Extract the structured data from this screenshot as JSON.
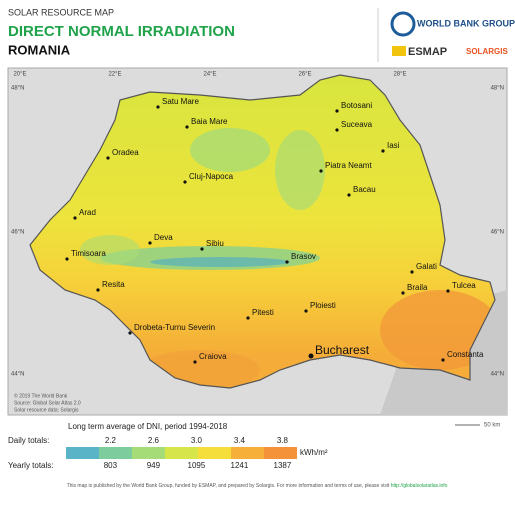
{
  "header": {
    "kicker": "SOLAR RESOURCE MAP",
    "title": "DIRECT NORMAL IRRADIATION",
    "country": "ROMANIA"
  },
  "logos": {
    "world_bank": "WORLD BANK GROUP",
    "esmap": "ESMAP",
    "solargis": "SOLARGIS"
  },
  "graticule": {
    "top": [
      "20°E",
      "22°E",
      "24°E",
      "26°E",
      "28°E"
    ],
    "left": [
      "48°N",
      "46°N",
      "44°N"
    ],
    "right": [
      "48°N",
      "46°N",
      "44°N"
    ]
  },
  "cities": [
    "Satu Mare",
    "Botosani",
    "Baia Mare",
    "Suceava",
    "Oradea",
    "Iasi",
    "Piatra Neamt",
    "Cluj-Napoca",
    "Bacau",
    "Arad",
    "Deva",
    "Sibiu",
    "Brasov",
    "Timisoara",
    "Galati",
    "Resita",
    "Braila",
    "Tulcea",
    "Pitesti",
    "Ploiesti",
    "Drobeta-Turnu Severin",
    "Bucharest",
    "Craiova",
    "Constanta"
  ],
  "credits": [
    "© 2019 The World Bank",
    "Source: Global Solar Atlas 2.0",
    "Solar resource data: Solargis"
  ],
  "scale_bar": "50 km",
  "legend": {
    "title": "Long term average of DNI, period 1994-2018",
    "daily_label": "Daily totals:",
    "yearly_label": "Yearly totals:",
    "unit": "kWh/m²",
    "daily": [
      "2.2",
      "2.6",
      "3.0",
      "3.4",
      "3.8"
    ],
    "yearly": [
      "803",
      "949",
      "1095",
      "1241",
      "1387"
    ]
  },
  "footer": {
    "text": "This map is published by the World Bank Group, funded by ESMAP, and prepared by Solargis. For more information and terms of use, please visit",
    "link": "http://globalsolaratlas.info"
  }
}
